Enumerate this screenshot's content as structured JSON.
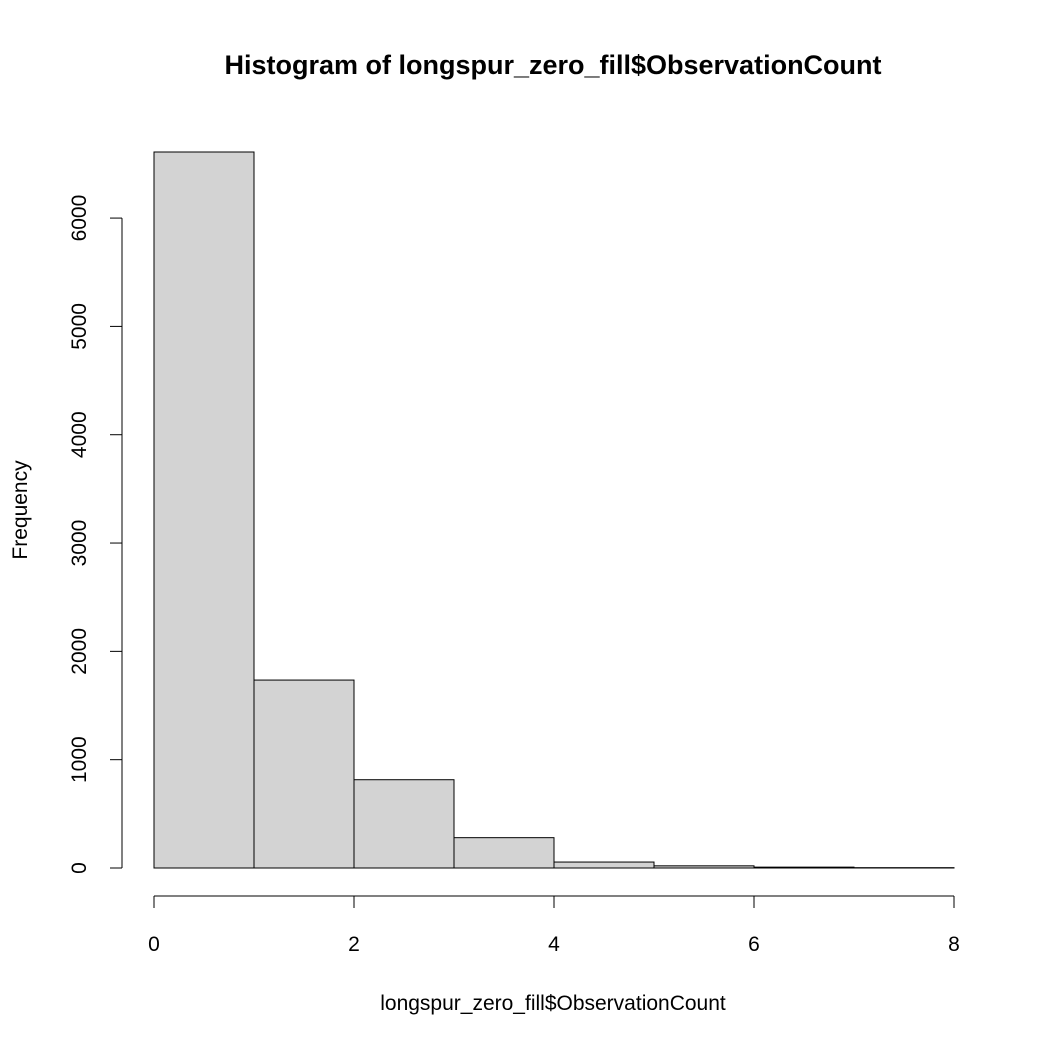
{
  "chart_data": {
    "type": "bar",
    "title": "Histogram of longspur_zero_fill$ObservationCount",
    "xlabel": "longspur_zero_fill$ObservationCount",
    "ylabel": "Frequency",
    "bin_edges": [
      0,
      1,
      2,
      3,
      4,
      5,
      6,
      7,
      8
    ],
    "values": [
      6610,
      1735,
      815,
      280,
      55,
      20,
      8,
      3
    ],
    "xlim": [
      0,
      8
    ],
    "ylim": [
      0,
      6610
    ],
    "x_ticks": [
      0,
      2,
      4,
      6,
      8
    ],
    "y_ticks": [
      0,
      1000,
      2000,
      3000,
      4000,
      5000,
      6000
    ],
    "grid": false,
    "colors": {
      "bar_fill": "#d3d3d3",
      "bar_stroke": "#000000"
    }
  }
}
